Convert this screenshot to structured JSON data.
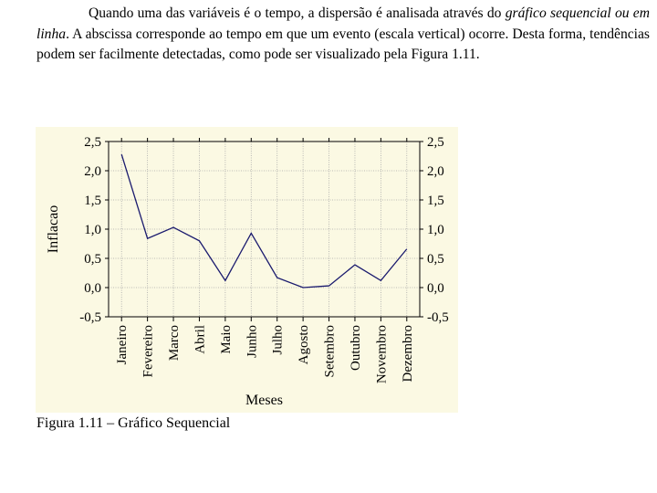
{
  "document": {
    "paragraph": {
      "lead": "Quando uma das variáveis é o tempo, a dispersão é analisada através do",
      "italic": "gráfico sequencial ou em linha",
      "tail": ". A abscissa corresponde ao tempo em que um evento (escala vertical) ocorre. Desta forma, tendências podem ser facilmente detectadas, como pode ser visualizado pela Figura 1.11."
    },
    "caption": "Figura 1.11 – Gráfico Sequencial"
  },
  "colors": {
    "panel_background": "#fbf9e3",
    "line": "#1a1a6e",
    "grid": "#a8a8a8",
    "axis": "#000000"
  },
  "chart_data": {
    "type": "line",
    "title": "",
    "xlabel": "Meses",
    "ylabel": "Inflacao",
    "categories": [
      "Janeiro",
      "Fevereiro",
      "Marco",
      "Abril",
      "Maio",
      "Junho",
      "Julho",
      "Agosto",
      "Setembro",
      "Outubro",
      "Novembro",
      "Dezembro"
    ],
    "series": [
      {
        "values": [
          2.28,
          0.84,
          1.03,
          0.8,
          0.12,
          0.93,
          0.17,
          0.0,
          0.03,
          0.39,
          0.12,
          0.66
        ]
      }
    ],
    "ylim": [
      -0.5,
      2.5
    ],
    "yticks": [
      -0.5,
      0.0,
      0.5,
      1.0,
      1.5,
      2.0,
      2.5
    ],
    "ytick_labels": [
      "-0,5",
      "0,0",
      "0,5",
      "1,0",
      "1,5",
      "2,0",
      "2,5"
    ],
    "grid": true,
    "right_axis": true,
    "legend": false
  }
}
